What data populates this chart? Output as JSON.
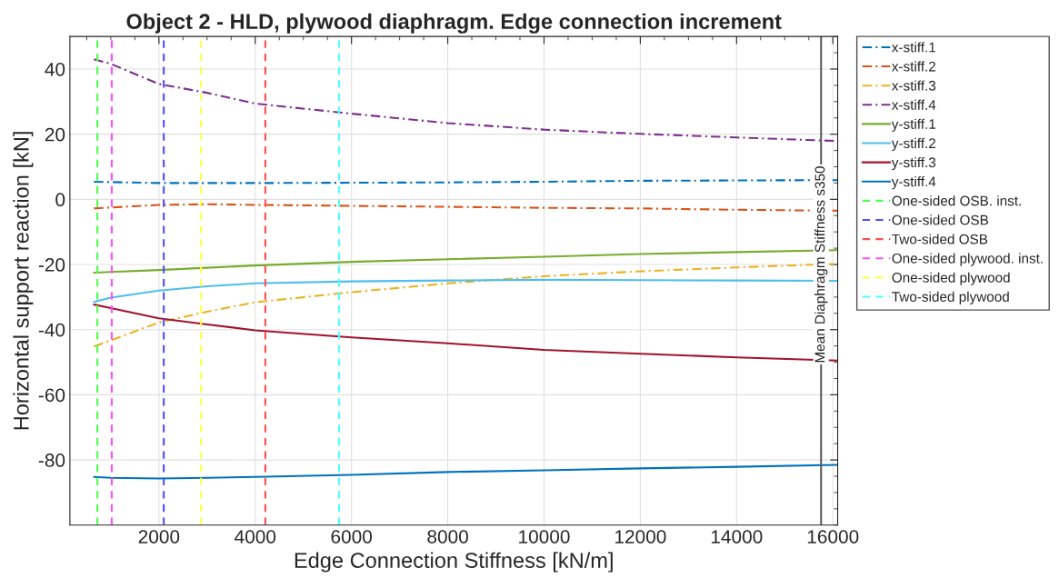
{
  "chart_data": {
    "type": "line",
    "title": "Object 2 - HLD, plywood diaphragm. Edge connection increment",
    "xlabel": "Edge Connection Stiffness [kN/m]",
    "ylabel": "Horizontal support reaction [kN]",
    "xlim": [
      150,
      16100
    ],
    "ylim": [
      -100,
      50
    ],
    "xticks": [
      2000,
      4000,
      6000,
      8000,
      10000,
      12000,
      14000,
      16000
    ],
    "yticks": [
      -80,
      -60,
      -40,
      -20,
      0,
      20,
      40
    ],
    "grid": true,
    "legend": "right",
    "marker": "none",
    "x": [
      650,
      1000,
      2000,
      3000,
      4000,
      6000,
      8000,
      10000,
      12000,
      14000,
      16100
    ],
    "series": [
      {
        "name": "x-stiff.1",
        "color": "#0072bd",
        "line_style": "dashdot",
        "values": [
          5.4,
          5.3,
          5.0,
          5.0,
          5.0,
          5.1,
          5.2,
          5.4,
          5.7,
          5.8,
          5.9
        ]
      },
      {
        "name": "x-stiff.2",
        "color": "#d95319",
        "line_style": "dashdot",
        "values": [
          -2.8,
          -2.5,
          -1.7,
          -1.5,
          -1.7,
          -2.0,
          -2.3,
          -2.6,
          -2.8,
          -3.2,
          -3.5
        ]
      },
      {
        "name": "x-stiff.3",
        "color": "#edb120",
        "line_style": "dashdot",
        "values": [
          -45.2,
          -43.3,
          -37.8,
          -34.5,
          -31.6,
          -28.5,
          -25.8,
          -23.6,
          -22.1,
          -20.9,
          -19.8
        ]
      },
      {
        "name": "x-stiff.4",
        "color": "#7e2f8e",
        "line_style": "dashdot",
        "values": [
          43.0,
          41.6,
          35.4,
          32.7,
          29.4,
          26.3,
          23.4,
          21.4,
          20.1,
          19.0,
          17.9
        ]
      },
      {
        "name": "y-stiff.1",
        "color": "#77ac30",
        "line_style": "solid",
        "values": [
          -22.5,
          -22.3,
          -21.7,
          -21.0,
          -20.3,
          -19.2,
          -18.4,
          -17.6,
          -16.8,
          -16.2,
          -15.6
        ]
      },
      {
        "name": "y-stiff.2",
        "color": "#4dbeee",
        "line_style": "solid",
        "values": [
          -31.5,
          -30.2,
          -28.0,
          -26.7,
          -25.8,
          -25.2,
          -24.9,
          -24.7,
          -24.8,
          -24.9,
          -25.0
        ]
      },
      {
        "name": "y-stiff.3",
        "color": "#a2142f",
        "line_style": "solid",
        "values": [
          -32.3,
          -33.4,
          -36.5,
          -38.4,
          -40.2,
          -42.4,
          -44.2,
          -46.2,
          -47.4,
          -48.5,
          -49.5
        ]
      },
      {
        "name": "y-stiff.4",
        "color": "#0072bd",
        "line_style": "solid",
        "values": [
          -85.2,
          -85.5,
          -85.7,
          -85.5,
          -85.2,
          -84.6,
          -83.7,
          -83.2,
          -82.6,
          -82.1,
          -81.5
        ]
      },
      {
        "name": "One-sided OSB. inst.",
        "color": "#4dff4d",
        "line_style": "dashed",
        "x": [
          720,
          720
        ],
        "values": [
          -100,
          50
        ]
      },
      {
        "name": "One-sided OSB",
        "color": "#4d4dff",
        "line_style": "dashed",
        "x": [
          2100,
          2100
        ],
        "values": [
          -100,
          50
        ]
      },
      {
        "name": "Two-sided OSB",
        "color": "#ff4d4d",
        "line_style": "dashed",
        "x": [
          4210,
          4210
        ],
        "values": [
          -100,
          50
        ]
      },
      {
        "name": "One-sided plywood. inst.",
        "color": "#ff4dff",
        "line_style": "dashed",
        "x": [
          1020,
          1020
        ],
        "values": [
          -100,
          50
        ]
      },
      {
        "name": "One-sided plywood",
        "color": "#ffff4d",
        "line_style": "dashed",
        "x": [
          2875,
          2875
        ],
        "values": [
          -100,
          50
        ]
      },
      {
        "name": "Two-sided plywood",
        "color": "#4dffff",
        "line_style": "dashed",
        "x": [
          5740,
          5740
        ],
        "values": [
          -100,
          50
        ]
      }
    ],
    "ref_lines": [
      {
        "axis": "x",
        "value": 15755,
        "label": "Mean Diaphragm Stiffness s350",
        "color": "#5a5a5a",
        "line_style": "solid"
      }
    ]
  }
}
